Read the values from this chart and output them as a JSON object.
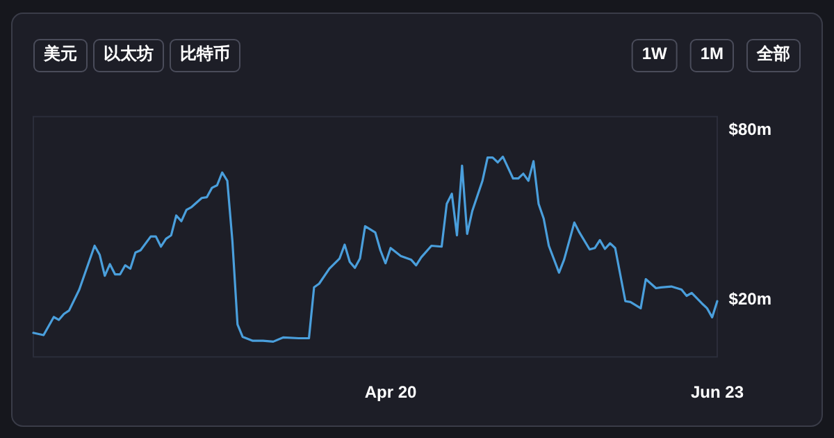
{
  "chart_data": {
    "type": "line",
    "annotations": [
      "美元",
      "以太坊",
      "比特币",
      "1W",
      "1M",
      "全部"
    ],
    "x": [
      "--02-09",
      "--02-11",
      "--02-13",
      "--02-14",
      "--02-15",
      "--02-16",
      "--02-18",
      "--02-21",
      "--02-22",
      "--02-23",
      "--02-24",
      "--02-25",
      "--02-26",
      "--02-27",
      "--02-28",
      "--03-01",
      "--03-02",
      "--03-04",
      "--03-05",
      "--03-06",
      "--03-07",
      "--03-08",
      "--03-09",
      "--03-10",
      "--03-11",
      "--03-12",
      "--03-14",
      "--03-15",
      "--03-16",
      "--03-17",
      "--03-18",
      "--03-19",
      "--03-20",
      "--03-21",
      "--03-22",
      "--03-24",
      "--03-26",
      "--03-28",
      "--03-30",
      "--04-02",
      "--04-04",
      "--04-05",
      "--04-06",
      "--04-08",
      "--04-10",
      "--04-11",
      "--04-12",
      "--04-13",
      "--04-14",
      "--04-15",
      "--04-17",
      "--04-18",
      "--04-19",
      "--04-20",
      "--04-22",
      "--04-24",
      "--04-25",
      "--04-26",
      "--04-28",
      "--04-30",
      "--05-01",
      "--05-02",
      "--05-03",
      "--05-04",
      "--05-05",
      "--05-06",
      "--05-08",
      "--05-09",
      "--05-10",
      "--05-11",
      "--05-12",
      "--05-14",
      "--05-15",
      "--05-16",
      "--05-17",
      "--05-18",
      "--05-19",
      "--05-20",
      "--05-21",
      "--05-23",
      "--05-24",
      "--05-26",
      "--05-27",
      "--05-29",
      "--05-30",
      "--05-31",
      "--06-01",
      "--06-02",
      "--06-03",
      "--06-05",
      "--06-06",
      "--06-08",
      "--06-09",
      "--06-11",
      "--06-12",
      "--06-14",
      "--06-16",
      "--06-17",
      "--06-18",
      "--06-20",
      "--06-21",
      "--06-22",
      "--06-23"
    ],
    "series": [
      {
        "color": "#4a9fdc",
        "values": [
          8.5,
          7.7,
          14.1,
          13.1,
          15.2,
          16.4,
          23.8,
          39.3,
          36.1,
          28.7,
          32.8,
          29.2,
          29.2,
          32.4,
          31.2,
          36.9,
          37.7,
          42.6,
          42.6,
          39.0,
          41.8,
          43.0,
          50.0,
          48.0,
          52.0,
          53.0,
          56.2,
          56.5,
          59.8,
          60.7,
          65.2,
          62.3,
          41.0,
          11.5,
          7.1,
          5.7,
          5.7,
          5.4,
          6.9,
          6.6,
          6.6,
          24.6,
          25.9,
          31.2,
          34.8,
          39.7,
          33.6,
          31.5,
          34.8,
          46.2,
          44.0,
          37.7,
          33.1,
          38.5,
          35.7,
          34.4,
          32.4,
          35.2,
          39.3,
          39.0,
          54.1,
          57.7,
          43.0,
          67.6,
          43.5,
          51.6,
          62.3,
          70.5,
          70.5,
          68.8,
          70.8,
          63.1,
          63.1,
          64.8,
          62.3,
          69.2,
          54.1,
          48.9,
          39.3,
          29.8,
          34.4,
          47.5,
          44.0,
          38.0,
          38.5,
          41.3,
          38.2,
          40.2,
          38.5,
          19.7,
          19.4,
          17.2,
          27.5,
          24.3,
          24.6,
          24.9,
          23.8,
          21.6,
          22.6,
          18.9,
          17.2,
          14.0,
          19.7
        ]
      }
    ],
    "xticks": [
      {
        "value": "--04-20",
        "label": "Apr 20"
      },
      {
        "value": "--06-23",
        "label": "Jun 23"
      }
    ],
    "yticks": [
      {
        "value": 80,
        "label": "$80m"
      },
      {
        "value": 20,
        "label": "$20m"
      }
    ],
    "xlim": [
      "--02-09",
      "--06-23"
    ],
    "ylim": [
      0,
      85
    ],
    "grid": false,
    "marker": "none",
    "line_style": "solid"
  }
}
